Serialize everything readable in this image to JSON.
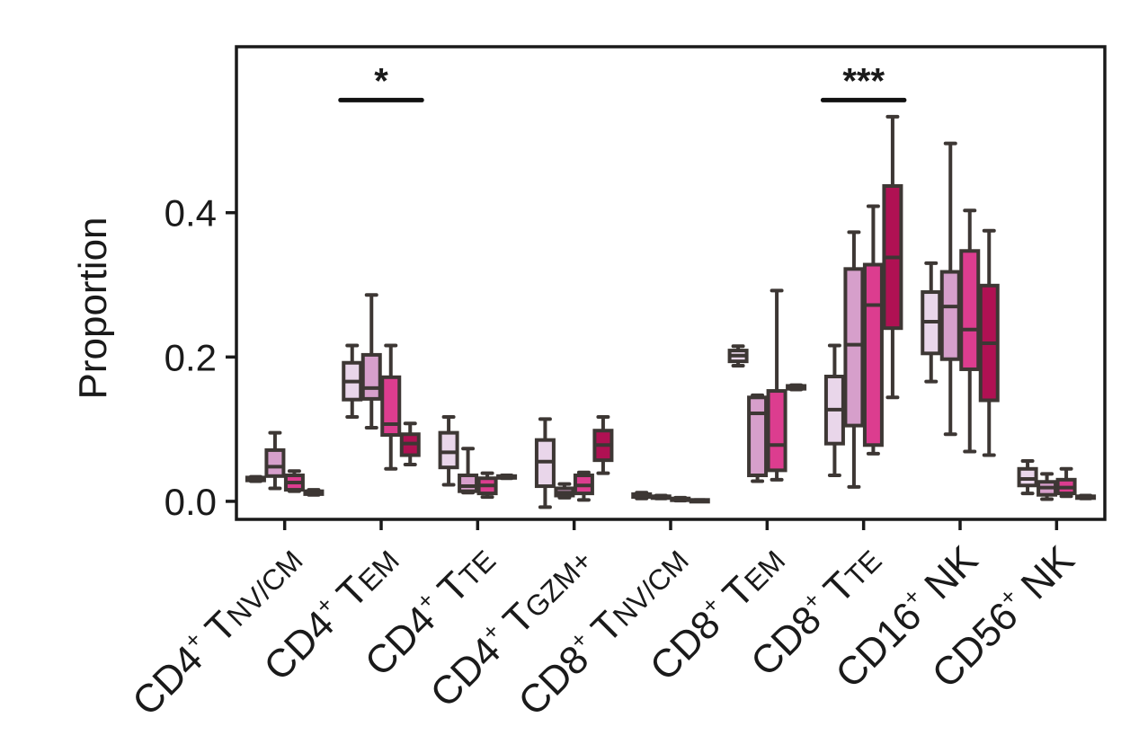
{
  "chart_data": {
    "type": "box",
    "title": "",
    "xlabel": "",
    "ylabel": "Proportion",
    "ylim": [
      -0.025,
      0.63
    ],
    "yticks": [
      0.0,
      0.2,
      0.4
    ],
    "ytick_labels": [
      "0.0",
      "0.2",
      "0.4"
    ],
    "group_colors": [
      "#e9d6ea",
      "#d69fcb",
      "#dc3d8f",
      "#b01153"
    ],
    "categories": [
      {
        "main": "CD4",
        "sup": "+",
        "mid": " T",
        "sub": "NV/CM"
      },
      {
        "main": "CD4",
        "sup": "+",
        "mid": " T",
        "sub": "EM"
      },
      {
        "main": "CD4",
        "sup": "+",
        "mid": " T",
        "sub": "TE"
      },
      {
        "main": "CD4",
        "sup": "+",
        "mid": " T",
        "sub": "GZM+"
      },
      {
        "main": "CD8",
        "sup": "+",
        "mid": " T",
        "sub": "NV/CM"
      },
      {
        "main": "CD8",
        "sup": "+",
        "mid": " T",
        "sub": "EM"
      },
      {
        "main": "CD8",
        "sup": "+",
        "mid": " T",
        "sub": "TE"
      },
      {
        "main": "CD16",
        "sup": "+",
        "mid": " NK",
        "sub": ""
      },
      {
        "main": "CD56",
        "sup": "+",
        "mid": " NK",
        "sub": ""
      }
    ],
    "boxes": [
      [
        {
          "whislo": 0.028,
          "q1": 0.029,
          "med": 0.031,
          "q3": 0.033,
          "whishi": 0.034
        },
        {
          "whislo": 0.018,
          "q1": 0.035,
          "med": 0.048,
          "q3": 0.071,
          "whishi": 0.095
        },
        {
          "whislo": 0.014,
          "q1": 0.016,
          "med": 0.026,
          "q3": 0.036,
          "whishi": 0.042
        },
        {
          "whislo": 0.009,
          "q1": 0.01,
          "med": 0.012,
          "q3": 0.014,
          "whishi": 0.016
        }
      ],
      [
        {
          "whislo": 0.117,
          "q1": 0.141,
          "med": 0.166,
          "q3": 0.192,
          "whishi": 0.216
        },
        {
          "whislo": 0.102,
          "q1": 0.142,
          "med": 0.157,
          "q3": 0.203,
          "whishi": 0.286
        },
        {
          "whislo": 0.045,
          "q1": 0.092,
          "med": 0.107,
          "q3": 0.172,
          "whishi": 0.216
        },
        {
          "whislo": 0.051,
          "q1": 0.064,
          "med": 0.08,
          "q3": 0.093,
          "whishi": 0.108
        }
      ],
      [
        {
          "whislo": 0.023,
          "q1": 0.047,
          "med": 0.068,
          "q3": 0.095,
          "whishi": 0.117
        },
        {
          "whislo": 0.012,
          "q1": 0.014,
          "med": 0.021,
          "q3": 0.036,
          "whishi": 0.073
        },
        {
          "whislo": 0.006,
          "q1": 0.011,
          "med": 0.022,
          "q3": 0.032,
          "whishi": 0.039
        },
        {
          "whislo": 0.032,
          "q1": 0.033,
          "med": 0.034,
          "q3": 0.035,
          "whishi": 0.036
        }
      ],
      [
        {
          "whislo": -0.008,
          "q1": 0.021,
          "med": 0.055,
          "q3": 0.085,
          "whishi": 0.114
        },
        {
          "whislo": 0.005,
          "q1": 0.008,
          "med": 0.012,
          "q3": 0.018,
          "whishi": 0.024
        },
        {
          "whislo": 0.002,
          "q1": 0.011,
          "med": 0.022,
          "q3": 0.036,
          "whishi": 0.04
        },
        {
          "whislo": 0.039,
          "q1": 0.057,
          "med": 0.078,
          "q3": 0.098,
          "whishi": 0.117
        }
      ],
      [
        {
          "whislo": 0.004,
          "q1": 0.006,
          "med": 0.008,
          "q3": 0.01,
          "whishi": 0.012
        },
        {
          "whislo": 0.004,
          "q1": 0.005,
          "med": 0.006,
          "q3": 0.007,
          "whishi": 0.008
        },
        {
          "whislo": 0.001,
          "q1": 0.002,
          "med": 0.003,
          "q3": 0.004,
          "whishi": 0.005
        },
        {
          "whislo": 0.0,
          "q1": 0.001,
          "med": 0.001,
          "q3": 0.002,
          "whishi": 0.002
        }
      ],
      [
        {
          "whislo": 0.188,
          "q1": 0.194,
          "med": 0.202,
          "q3": 0.209,
          "whishi": 0.215
        },
        {
          "whislo": 0.028,
          "q1": 0.036,
          "med": 0.122,
          "q3": 0.144,
          "whishi": 0.147
        },
        {
          "whislo": 0.03,
          "q1": 0.043,
          "med": 0.078,
          "q3": 0.153,
          "whishi": 0.292
        },
        {
          "whislo": 0.155,
          "q1": 0.156,
          "med": 0.158,
          "q3": 0.16,
          "whishi": 0.161
        }
      ],
      [
        {
          "whislo": 0.036,
          "q1": 0.08,
          "med": 0.127,
          "q3": 0.173,
          "whishi": 0.216
        },
        {
          "whislo": 0.02,
          "q1": 0.105,
          "med": 0.217,
          "q3": 0.322,
          "whishi": 0.373
        },
        {
          "whislo": 0.066,
          "q1": 0.078,
          "med": 0.272,
          "q3": 0.328,
          "whishi": 0.409
        },
        {
          "whislo": 0.144,
          "q1": 0.24,
          "med": 0.338,
          "q3": 0.437,
          "whishi": 0.533
        }
      ],
      [
        {
          "whislo": 0.166,
          "q1": 0.205,
          "med": 0.249,
          "q3": 0.29,
          "whishi": 0.33
        },
        {
          "whislo": 0.093,
          "q1": 0.197,
          "med": 0.27,
          "q3": 0.318,
          "whishi": 0.496
        },
        {
          "whislo": 0.069,
          "q1": 0.183,
          "med": 0.238,
          "q3": 0.347,
          "whishi": 0.403
        },
        {
          "whislo": 0.064,
          "q1": 0.14,
          "med": 0.219,
          "q3": 0.299,
          "whishi": 0.375
        }
      ],
      [
        {
          "whislo": 0.011,
          "q1": 0.022,
          "med": 0.031,
          "q3": 0.045,
          "whishi": 0.056
        },
        {
          "whislo": 0.003,
          "q1": 0.009,
          "med": 0.019,
          "q3": 0.027,
          "whishi": 0.038
        },
        {
          "whislo": 0.007,
          "q1": 0.011,
          "med": 0.019,
          "q3": 0.03,
          "whishi": 0.045
        },
        {
          "whislo": 0.004,
          "q1": 0.005,
          "med": 0.006,
          "q3": 0.007,
          "whishi": 0.008
        }
      ]
    ],
    "annotations": [
      {
        "text": "*",
        "category_index": 1,
        "from_group": 0,
        "to_group": 3,
        "y": 0.556
      },
      {
        "text": "***",
        "category_index": 6,
        "from_group": 0,
        "to_group": 3,
        "y": 0.556
      }
    ]
  }
}
